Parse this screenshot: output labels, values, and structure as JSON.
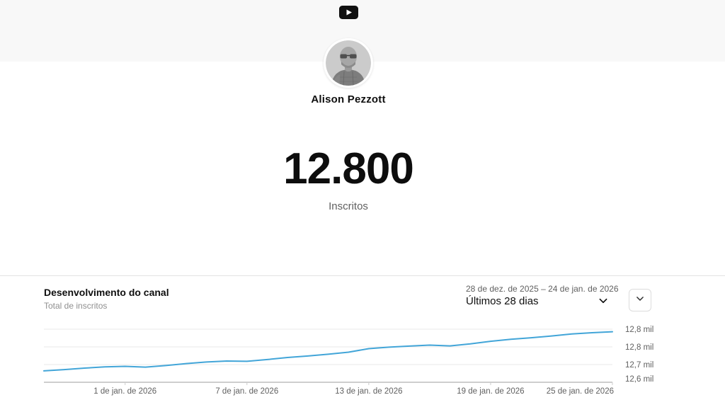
{
  "colors": {
    "band_bg": "#f8f8f8",
    "line_blue": "#42a5d8",
    "grid_line": "#e8e8e8",
    "axis_line": "#9e9e9e",
    "tick_mark": "#cccccc",
    "muted_text": "#606060",
    "divider": "#e3e3e3"
  },
  "icons": {
    "logo": "youtube-icon",
    "range_dropdown": "chevron-down-icon",
    "expand": "chevron-down-icon"
  },
  "header": {
    "channel_name": "Alison Pezzott",
    "subscriber_count": "12.800",
    "subscriber_label": "Inscritos"
  },
  "panel": {
    "title": "Desenvolvimento do canal",
    "subtitle": "Total de inscritos",
    "date_range": "28 de dez. de 2025 – 24 de jan. de 2026",
    "period": "Últimos 28 dias"
  },
  "chart_data": {
    "type": "line",
    "title": "Desenvolvimento do canal",
    "ylabel": "Total de inscritos",
    "x_range_label": "28 de dez. de 2025 – 24 de jan. de 2026",
    "days": 28,
    "ylim": [
      12600,
      12810
    ],
    "grid": true,
    "y_tick_labels_top_to_bottom": [
      "12,8 mil",
      "12,8 mil",
      "12,7 mil",
      "12,6 mil"
    ],
    "x_ticks": [
      {
        "day": 4,
        "label": "1 de jan. de 2026"
      },
      {
        "day": 10,
        "label": "7 de jan. de 2026"
      },
      {
        "day": 16,
        "label": "13 de jan. de 2026"
      },
      {
        "day": 22,
        "label": "19 de jan. de 2026"
      },
      {
        "day": 28,
        "label": "25 de jan. de 2026"
      }
    ],
    "series": [
      {
        "name": "Total de inscritos",
        "color": "#42a5d8",
        "values": [
          12645,
          12650,
          12656,
          12661,
          12663,
          12660,
          12666,
          12674,
          12680,
          12684,
          12683,
          12690,
          12698,
          12704,
          12711,
          12719,
          12733,
          12739,
          12743,
          12747,
          12744,
          12752,
          12762,
          12770,
          12776,
          12783,
          12791,
          12796,
          12800
        ]
      }
    ]
  }
}
